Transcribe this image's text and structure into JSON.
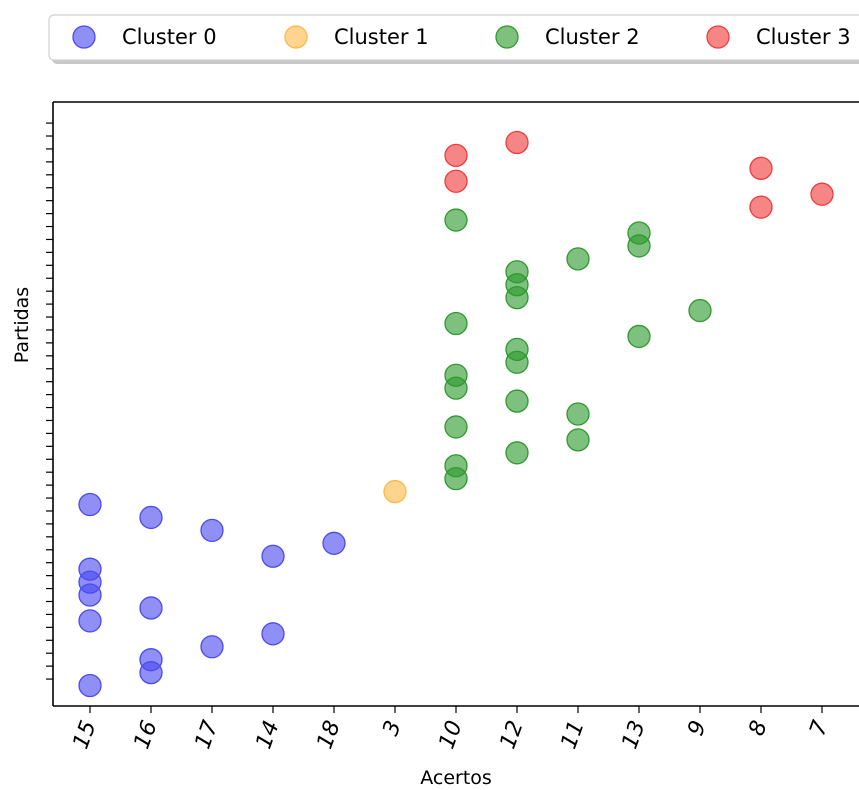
{
  "chart_data": {
    "type": "scatter",
    "title": "",
    "xlabel": "Acertos",
    "ylabel": "Partidas",
    "categories": [
      "15",
      "16",
      "17",
      "14",
      "18",
      "3",
      "10",
      "12",
      "11",
      "13",
      "9",
      "8",
      "7"
    ],
    "ylim": [
      0,
      45
    ],
    "y_tick_labels_shown": false,
    "grid": false,
    "legend": "top",
    "series": [
      {
        "name": "Cluster 0",
        "color": "#4b4bf0",
        "points": [
          {
            "x": "15",
            "y": 14.5
          },
          {
            "x": "15",
            "y": 9.5
          },
          {
            "x": "15",
            "y": 8.5
          },
          {
            "x": "15",
            "y": 7.5
          },
          {
            "x": "15",
            "y": 5.5
          },
          {
            "x": "15",
            "y": 0.5
          },
          {
            "x": "16",
            "y": 13.5
          },
          {
            "x": "16",
            "y": 6.5
          },
          {
            "x": "16",
            "y": 2.5
          },
          {
            "x": "16",
            "y": 1.5
          },
          {
            "x": "17",
            "y": 12.5
          },
          {
            "x": "17",
            "y": 3.5
          },
          {
            "x": "14",
            "y": 10.5
          },
          {
            "x": "14",
            "y": 4.5
          },
          {
            "x": "18",
            "y": 11.5
          }
        ]
      },
      {
        "name": "Cluster 1",
        "color": "#fdb94a",
        "points": [
          {
            "x": "3",
            "y": 15.5
          }
        ]
      },
      {
        "name": "Cluster 2",
        "color": "#2e9a2e",
        "points": [
          {
            "x": "10",
            "y": 36.5
          },
          {
            "x": "10",
            "y": 28.5
          },
          {
            "x": "10",
            "y": 24.5
          },
          {
            "x": "10",
            "y": 23.5
          },
          {
            "x": "10",
            "y": 20.5
          },
          {
            "x": "10",
            "y": 17.5
          },
          {
            "x": "10",
            "y": 16.5
          },
          {
            "x": "12",
            "y": 32.5
          },
          {
            "x": "12",
            "y": 31.5
          },
          {
            "x": "12",
            "y": 30.5
          },
          {
            "x": "12",
            "y": 26.5
          },
          {
            "x": "12",
            "y": 25.5
          },
          {
            "x": "12",
            "y": 22.5
          },
          {
            "x": "12",
            "y": 18.5
          },
          {
            "x": "11",
            "y": 33.5
          },
          {
            "x": "11",
            "y": 21.5
          },
          {
            "x": "11",
            "y": 19.5
          },
          {
            "x": "13",
            "y": 35.5
          },
          {
            "x": "13",
            "y": 34.5
          },
          {
            "x": "13",
            "y": 27.5
          },
          {
            "x": "9",
            "y": 29.5
          }
        ]
      },
      {
        "name": "Cluster 3",
        "color": "#f03c3c",
        "points": [
          {
            "x": "10",
            "y": 41.5
          },
          {
            "x": "10",
            "y": 39.5
          },
          {
            "x": "12",
            "y": 42.5
          },
          {
            "x": "8",
            "y": 40.5
          },
          {
            "x": "8",
            "y": 37.5
          },
          {
            "x": "7",
            "y": 38.5
          }
        ]
      }
    ]
  }
}
